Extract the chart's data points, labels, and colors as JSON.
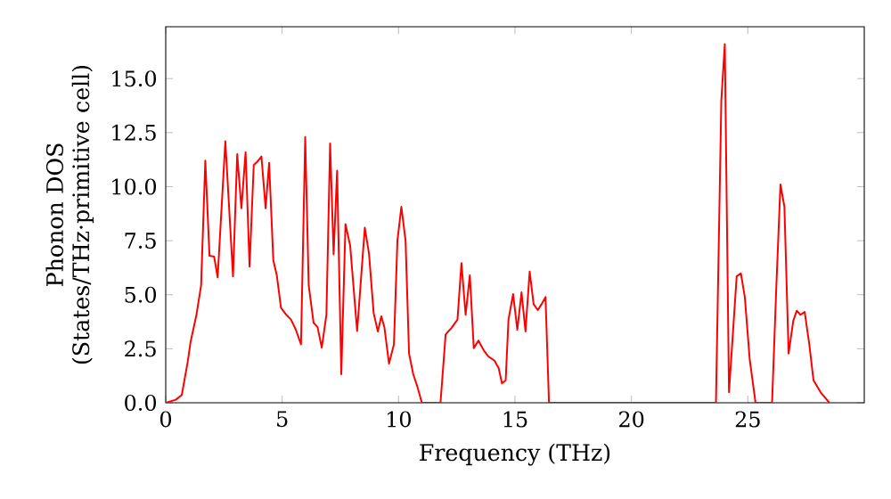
{
  "chart_data": {
    "type": "line",
    "xlabel": "Frequency (THz)",
    "ylabel": "Phonon DOS (States/THz·primitive cell)",
    "xlim": [
      0,
      30
    ],
    "ylim": [
      0,
      17.4
    ],
    "xticks": [
      0,
      5,
      10,
      15,
      20,
      25
    ],
    "yticks": [
      {
        "value": 0,
        "label": "0.0"
      },
      {
        "value": 2.5,
        "label": "2.5"
      },
      {
        "value": 5,
        "label": "5.0"
      },
      {
        "value": 7.5,
        "label": "7.5"
      },
      {
        "value": 10,
        "label": "10.0"
      },
      {
        "value": 12.5,
        "label": "12.5"
      },
      {
        "value": 15,
        "label": "15.0"
      }
    ],
    "marker": "none",
    "line_style": "solid",
    "series": [
      {
        "color": "#ff0000",
        "x": [
          0,
          0.43,
          0.69,
          0.94,
          1.07,
          1.32,
          1.52,
          1.7,
          1.88,
          2.08,
          2.23,
          2.56,
          2.89,
          3.07,
          3.25,
          3.43,
          3.6,
          3.78,
          3.93,
          4.11,
          4.29,
          4.44,
          4.62,
          4.77,
          4.95,
          5.18,
          5.38,
          5.58,
          5.81,
          5.99,
          6.14,
          6.35,
          6.52,
          6.7,
          6.9,
          7.06,
          7.21,
          7.36,
          7.54,
          7.72,
          7.92,
          8.22,
          8.55,
          8.73,
          8.93,
          9.11,
          9.26,
          9.39,
          9.59,
          9.8,
          9.95,
          10.12,
          10.3,
          10.45,
          10.63,
          10.8,
          11.0,
          11.8,
          12.02,
          12.27,
          12.53,
          12.7,
          12.88,
          13.06,
          13.23,
          13.43,
          13.66,
          13.86,
          14.12,
          14.3,
          14.44,
          14.6,
          14.72,
          14.92,
          15.1,
          15.28,
          15.45,
          15.63,
          15.8,
          15.98,
          16.14,
          16.31,
          16.46,
          23.63,
          23.86,
          24.01,
          24.19,
          24.52,
          24.7,
          24.87,
          25.08,
          25.33,
          26.04,
          26.22,
          26.4,
          26.57,
          26.75,
          26.95,
          27.1,
          27.26,
          27.44,
          27.64,
          27.82,
          28.12,
          28.5
        ],
        "values": [
          0,
          0.14,
          0.36,
          1.87,
          2.83,
          4.07,
          5.44,
          11.2,
          6.8,
          6.76,
          5.8,
          12.1,
          5.85,
          11.5,
          9.0,
          11.6,
          6.3,
          11.0,
          11.15,
          11.4,
          9.0,
          11.1,
          6.6,
          5.9,
          4.4,
          4.07,
          3.85,
          3.4,
          2.7,
          12.3,
          5.44,
          3.7,
          3.5,
          2.55,
          4.07,
          12.0,
          6.87,
          10.74,
          1.32,
          8.27,
          7.28,
          3.32,
          8.1,
          6.9,
          4.15,
          3.3,
          4.0,
          3.5,
          1.81,
          2.7,
          7.5,
          9.07,
          7.5,
          2.28,
          1.32,
          0.77,
          0,
          0,
          3.16,
          3.46,
          3.85,
          6.46,
          4.07,
          5.9,
          2.53,
          2.88,
          2.42,
          2.14,
          1.95,
          1.6,
          0.9,
          1.04,
          3.85,
          5.03,
          3.38,
          5.11,
          3.3,
          6.07,
          4.56,
          4.29,
          4.56,
          4.89,
          0,
          0,
          13.96,
          16.6,
          0.49,
          5.85,
          5.99,
          4.89,
          2.0,
          0,
          0,
          5.3,
          10.1,
          9.07,
          2.28,
          3.79,
          4.26,
          4.07,
          4.2,
          2.7,
          1.04,
          0.49,
          0
        ]
      }
    ]
  }
}
